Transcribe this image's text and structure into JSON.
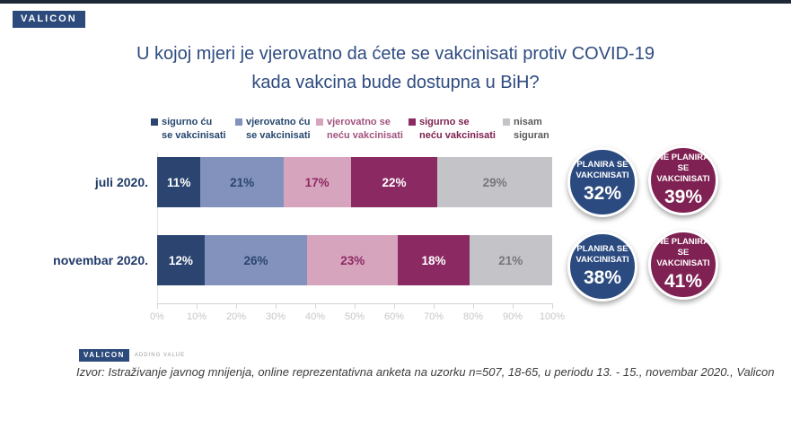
{
  "header": {
    "brand_logo": "VALICON",
    "title_line1": "U kojoj mjeri je vjerovatno da ćete se vakcinisati protiv COVID-19",
    "title_line2": "kada vakcina bude dostupna u BiH?"
  },
  "legend": {
    "items": [
      {
        "line1": "sigurno ću",
        "line2": "se vakcinisati",
        "swatch_color": "#2b4570",
        "text_color": "#24466e"
      },
      {
        "line1": "vjerovatno ću",
        "line2": "se vakcinisati",
        "swatch_color": "#8292bc",
        "text_color": "#24466e"
      },
      {
        "line1": "vjerovatno se",
        "line2": "neću vakcinisati",
        "swatch_color": "#d6a4bc",
        "text_color": "#a2537e"
      },
      {
        "line1": "sigurno se",
        "line2": "neću vakcinisati",
        "swatch_color": "#8b2a62",
        "text_color": "#7d2150"
      },
      {
        "line1": "nisam",
        "line2": "siguran",
        "swatch_color": "#c4c4c8",
        "text_color": "#595959"
      }
    ]
  },
  "chart_data": {
    "type": "bar",
    "orientation": "horizontal",
    "stacked": true,
    "title": "U kojoj mjeri je vjerovatno da ćete se vakcinisati protiv COVID-19 kada vakcina bude dostupna u BiH?",
    "categories": [
      "juli 2020.",
      "novembar 2020."
    ],
    "series": [
      {
        "name": "sigurno ću se vakcinisati",
        "color": "#2b4570",
        "value_text_color": "#ffffff",
        "values": [
          11,
          12
        ]
      },
      {
        "name": "vjerovatno ću se vakcinisati",
        "color": "#8292bc",
        "value_text_color": "#2b4570",
        "values": [
          21,
          26
        ]
      },
      {
        "name": "vjerovatno se neću vakcinisati",
        "color": "#d6a4bc",
        "value_text_color": "#8d2963",
        "values": [
          17,
          23
        ]
      },
      {
        "name": "sigurno se neću vakcinisati",
        "color": "#8b2a62",
        "value_text_color": "#ffffff",
        "values": [
          22,
          18
        ]
      },
      {
        "name": "nisam siguran",
        "color": "#c4c4c8",
        "value_text_color": "#77777b",
        "values": [
          29,
          21
        ]
      }
    ],
    "value_suffix": "%",
    "x_axis": {
      "ticks": [
        "0%",
        "10%",
        "20%",
        "30%",
        "40%",
        "50%",
        "60%",
        "70%",
        "80%",
        "90%",
        "100%"
      ],
      "min": 0,
      "max": 100
    },
    "grid": false,
    "legend_position": "top"
  },
  "badges": [
    {
      "group": "juli 2020.",
      "label": "PLANIRA SE VAKCINISATI",
      "value": "32%",
      "color": "#2b4a7f"
    },
    {
      "group": "juli 2020.",
      "label": "NE PLANIRA SE VAKCINISATI",
      "value": "39%",
      "color": "#7f2153"
    },
    {
      "group": "novembar 2020.",
      "label": "PLANIRA SE VAKCINISATI",
      "value": "38%",
      "color": "#2b4a7f"
    },
    {
      "group": "novembar 2020.",
      "label": "NE PLANIRA SE VAKCINISATI",
      "value": "41%",
      "color": "#7f2153"
    }
  ],
  "footer": {
    "brand_logo": "VALICON",
    "brand_tagline": "ADDING VALUE",
    "source": "Izvor: Istraživanje javnog mnijenja, online reprezentativna anketa na uzorku n=507, 18-65, u periodu 13. - 15., novembar 2020., Valicon"
  }
}
